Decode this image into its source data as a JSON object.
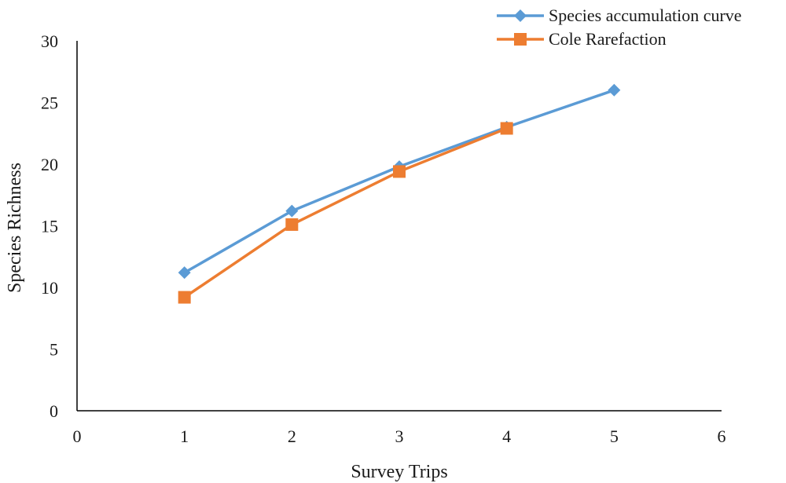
{
  "chart_data": {
    "type": "line",
    "xlabel": "Survey Trips",
    "ylabel": "Species Richness",
    "xlim": [
      0,
      6
    ],
    "ylim": [
      0,
      30
    ],
    "xticks": [
      "0",
      "1",
      "2",
      "3",
      "4",
      "5",
      "6"
    ],
    "yticks": [
      "0",
      "5",
      "10",
      "15",
      "20",
      "25",
      "30"
    ],
    "grid": false,
    "legend_position": "top-right",
    "series": [
      {
        "name": "Species accumulation curve",
        "color": "#5B9BD5",
        "marker": "diamond",
        "x": [
          1,
          2,
          3,
          4,
          5
        ],
        "y": [
          11.2,
          16.2,
          19.8,
          23.0,
          26.0
        ]
      },
      {
        "name": "Cole Rarefaction",
        "color": "#ED7D31",
        "marker": "square",
        "x": [
          1,
          2,
          3,
          4
        ],
        "y": [
          9.2,
          15.1,
          19.4,
          22.9
        ]
      }
    ]
  }
}
